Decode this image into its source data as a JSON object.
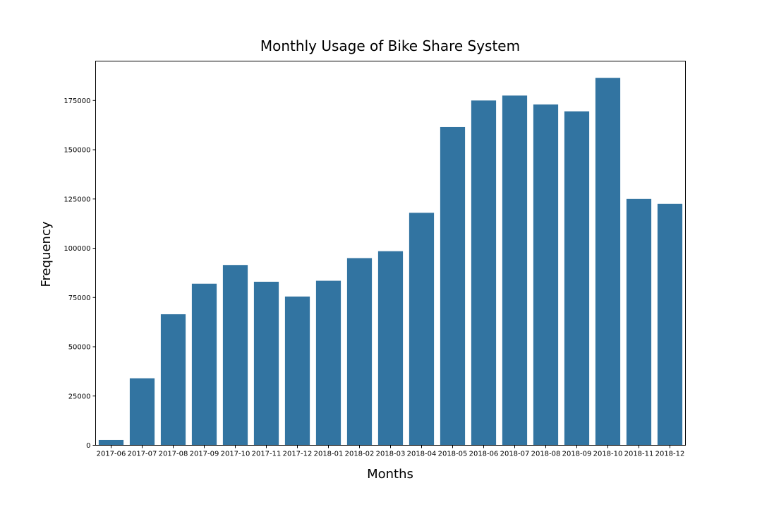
{
  "chart_data": {
    "type": "bar",
    "title": "Monthly Usage of Bike Share System",
    "xlabel": "Months",
    "ylabel": "Frequency",
    "categories": [
      "2017-06",
      "2017-07",
      "2017-08",
      "2017-09",
      "2017-10",
      "2017-11",
      "2017-12",
      "2018-01",
      "2018-02",
      "2018-03",
      "2018-04",
      "2018-05",
      "2018-06",
      "2018-07",
      "2018-08",
      "2018-09",
      "2018-10",
      "2018-11",
      "2018-12"
    ],
    "values": [
      2700,
      34000,
      66500,
      82000,
      91500,
      83000,
      75500,
      83500,
      95000,
      98500,
      118000,
      161500,
      175000,
      177500,
      173000,
      169500,
      186500,
      125000,
      122500
    ],
    "ylim": [
      0,
      195000
    ],
    "yticks": [
      0,
      25000,
      50000,
      75000,
      100000,
      125000,
      150000,
      175000
    ],
    "bar_color": "#3274a1",
    "grid": false,
    "legend": "none"
  }
}
